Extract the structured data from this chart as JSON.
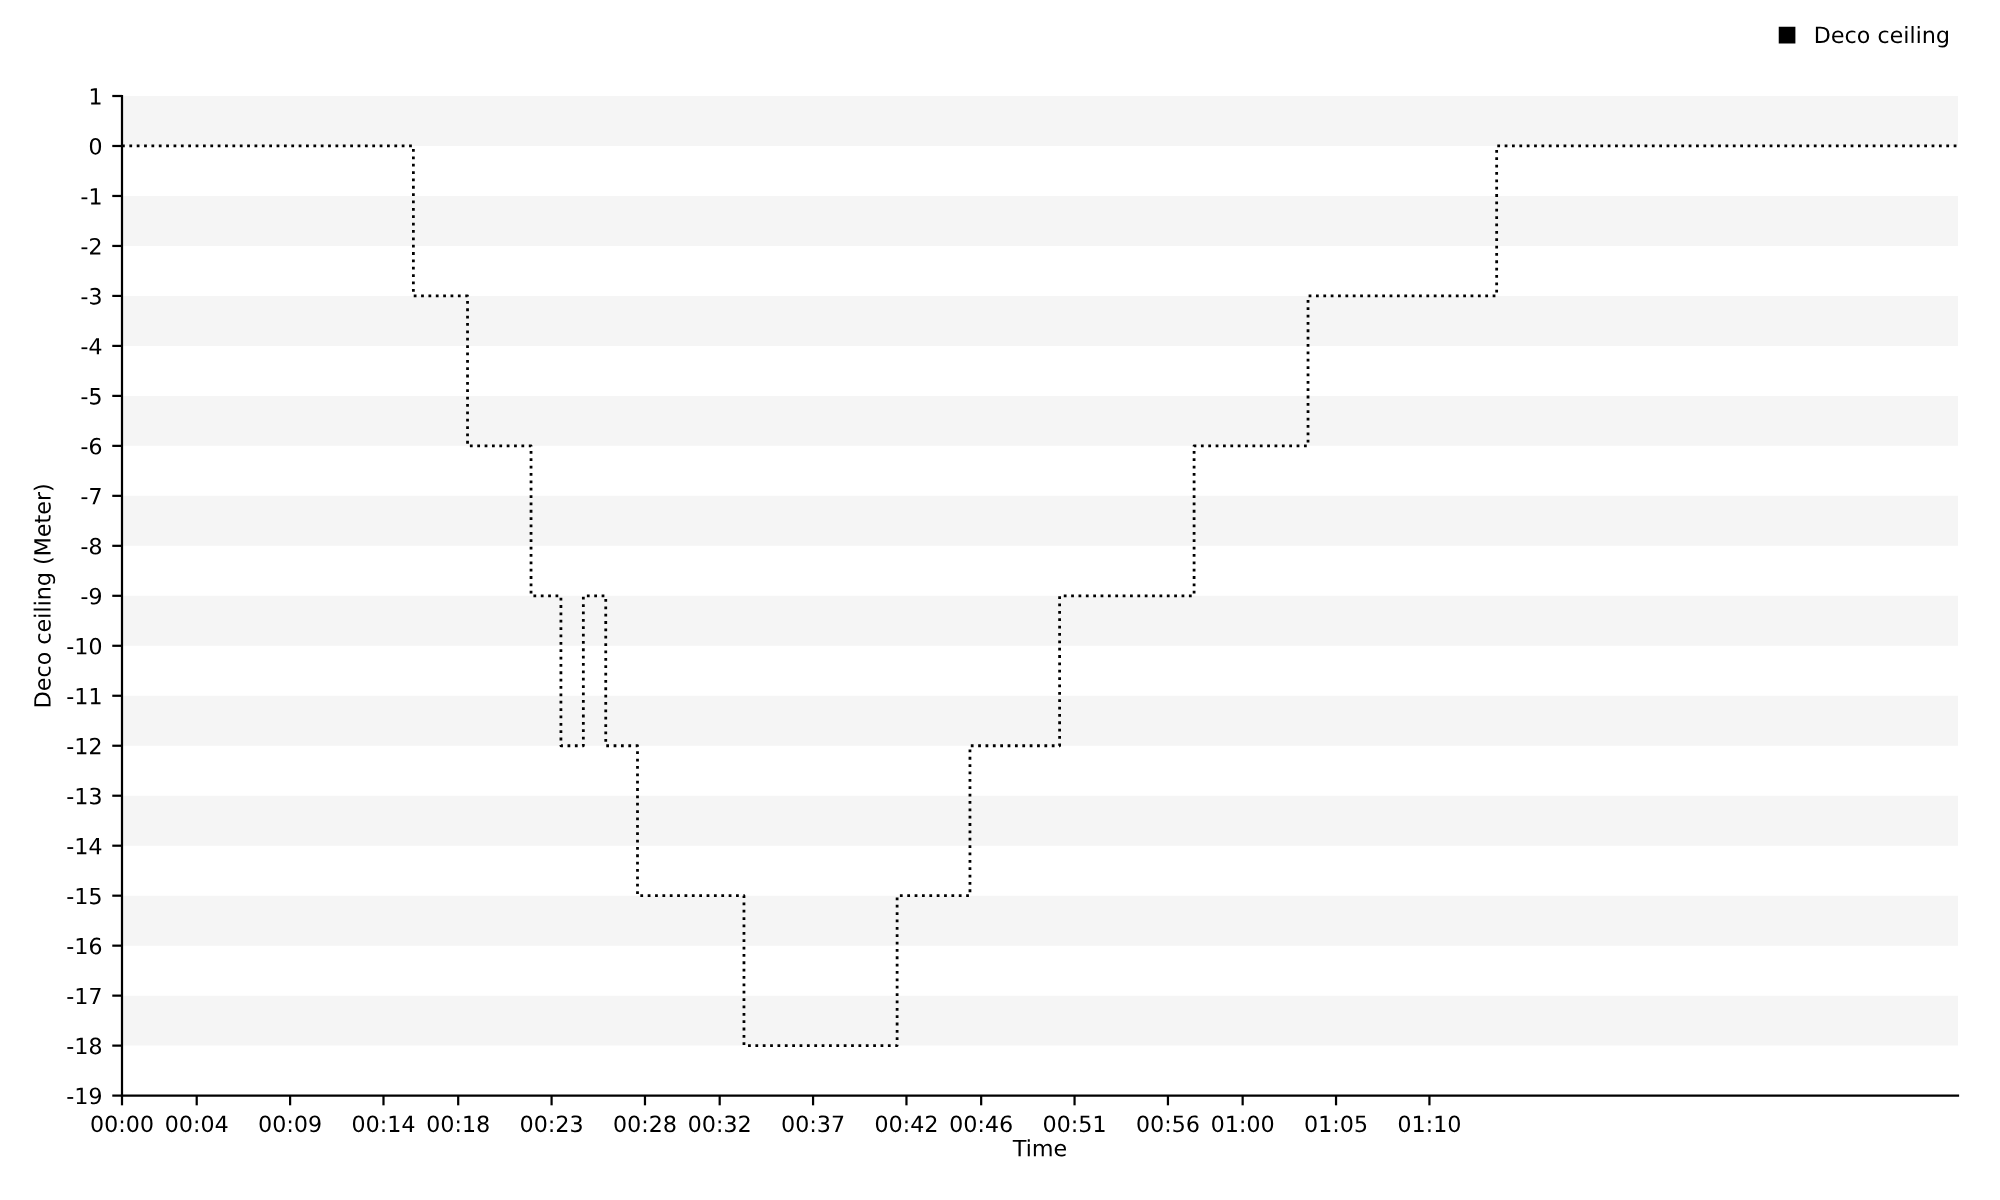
{
  "chart_data": {
    "type": "step",
    "xlabel": "Time",
    "ylabel": "Deco ceiling (Meter)",
    "x": [
      0,
      15.6,
      18.5,
      21.9,
      23.5,
      24.7,
      25.9,
      27.6,
      33.3,
      41.5,
      45.4,
      50.2,
      57.4,
      63.5,
      73.6,
      98.3
    ],
    "series": [
      {
        "name": "Deco ceiling",
        "color": "#000000",
        "values": [
          0,
          -3,
          -6,
          -9,
          -12,
          -9,
          -12,
          -15,
          -18,
          -15,
          -12,
          -9,
          -6,
          -3,
          0,
          0
        ]
      }
    ],
    "xlim": [
      0,
      98.3
    ],
    "xticks": [
      {
        "value": 0,
        "label": "00:00"
      },
      {
        "value": 4,
        "label": "00:04"
      },
      {
        "value": 9,
        "label": "00:09"
      },
      {
        "value": 14,
        "label": "00:14"
      },
      {
        "value": 18,
        "label": "00:18"
      },
      {
        "value": 23,
        "label": "00:23"
      },
      {
        "value": 28,
        "label": "00:28"
      },
      {
        "value": 32,
        "label": "00:32"
      },
      {
        "value": 37,
        "label": "00:37"
      },
      {
        "value": 42,
        "label": "00:42"
      },
      {
        "value": 46,
        "label": "00:46"
      },
      {
        "value": 51,
        "label": "00:51"
      },
      {
        "value": 56,
        "label": "00:56"
      },
      {
        "value": 60,
        "label": "01:00"
      },
      {
        "value": 65,
        "label": "01:05"
      },
      {
        "value": 70,
        "label": "01:10"
      }
    ],
    "bands": [
      {
        "axis": "y",
        "from": 1,
        "to": 0,
        "color": "#f5f5f5"
      },
      {
        "axis": "y",
        "from": -1,
        "to": -2,
        "color": "#f5f5f5"
      },
      {
        "axis": "y",
        "from": -3,
        "to": -4,
        "color": "#f5f5f5"
      },
      {
        "axis": "y",
        "from": -5,
        "to": -6,
        "color": "#f5f5f5"
      },
      {
        "axis": "y",
        "from": -7,
        "to": -8,
        "color": "#f5f5f5"
      },
      {
        "axis": "y",
        "from": -9,
        "to": -10,
        "color": "#f5f5f5"
      },
      {
        "axis": "y",
        "from": -11,
        "to": -12,
        "color": "#f5f5f5"
      },
      {
        "axis": "y",
        "from": -13,
        "to": -14,
        "color": "#f5f5f5"
      },
      {
        "axis": "y",
        "from": -15,
        "to": -16,
        "color": "#f5f5f5"
      },
      {
        "axis": "y",
        "from": -17,
        "to": -18,
        "color": "#f5f5f5"
      }
    ],
    "ylim": [
      -19,
      1
    ],
    "yticks": [
      1,
      0,
      -1,
      -2,
      -3,
      -4,
      -5,
      -6,
      -7,
      -8,
      -9,
      -10,
      -11,
      -12,
      -13,
      -14,
      -15,
      -16,
      -17,
      -18,
      -19
    ],
    "legend": "top right",
    "line_style": "dotted",
    "marker": "none"
  }
}
